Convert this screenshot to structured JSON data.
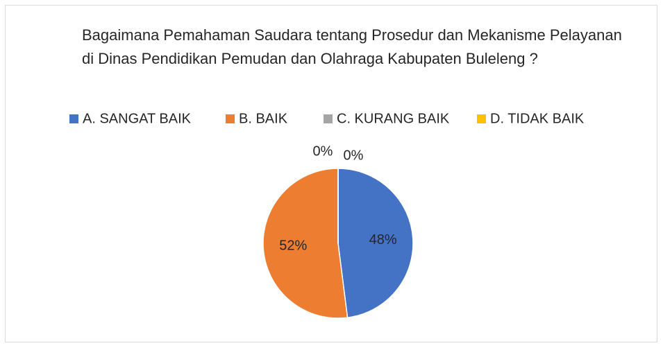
{
  "chart_data": {
    "type": "pie",
    "title": "Bagaimana Pemahaman Saudara tentang  Prosedur dan Mekanisme Pelayanan di Dinas Pendidikan Pemudan dan Olahraga Kabupaten Buleleng ?",
    "categories": [
      "A. SANGAT BAIK",
      "B. BAIK",
      "C. KURANG BAIK",
      "D. TIDAK BAIK"
    ],
    "values": [
      48,
      52,
      0,
      0
    ],
    "value_labels": [
      "48%",
      "52%",
      "0%",
      "0%"
    ],
    "colors": [
      "#4472c4",
      "#ed7d31",
      "#a5a5a5",
      "#ffc000"
    ],
    "legend": "top"
  }
}
